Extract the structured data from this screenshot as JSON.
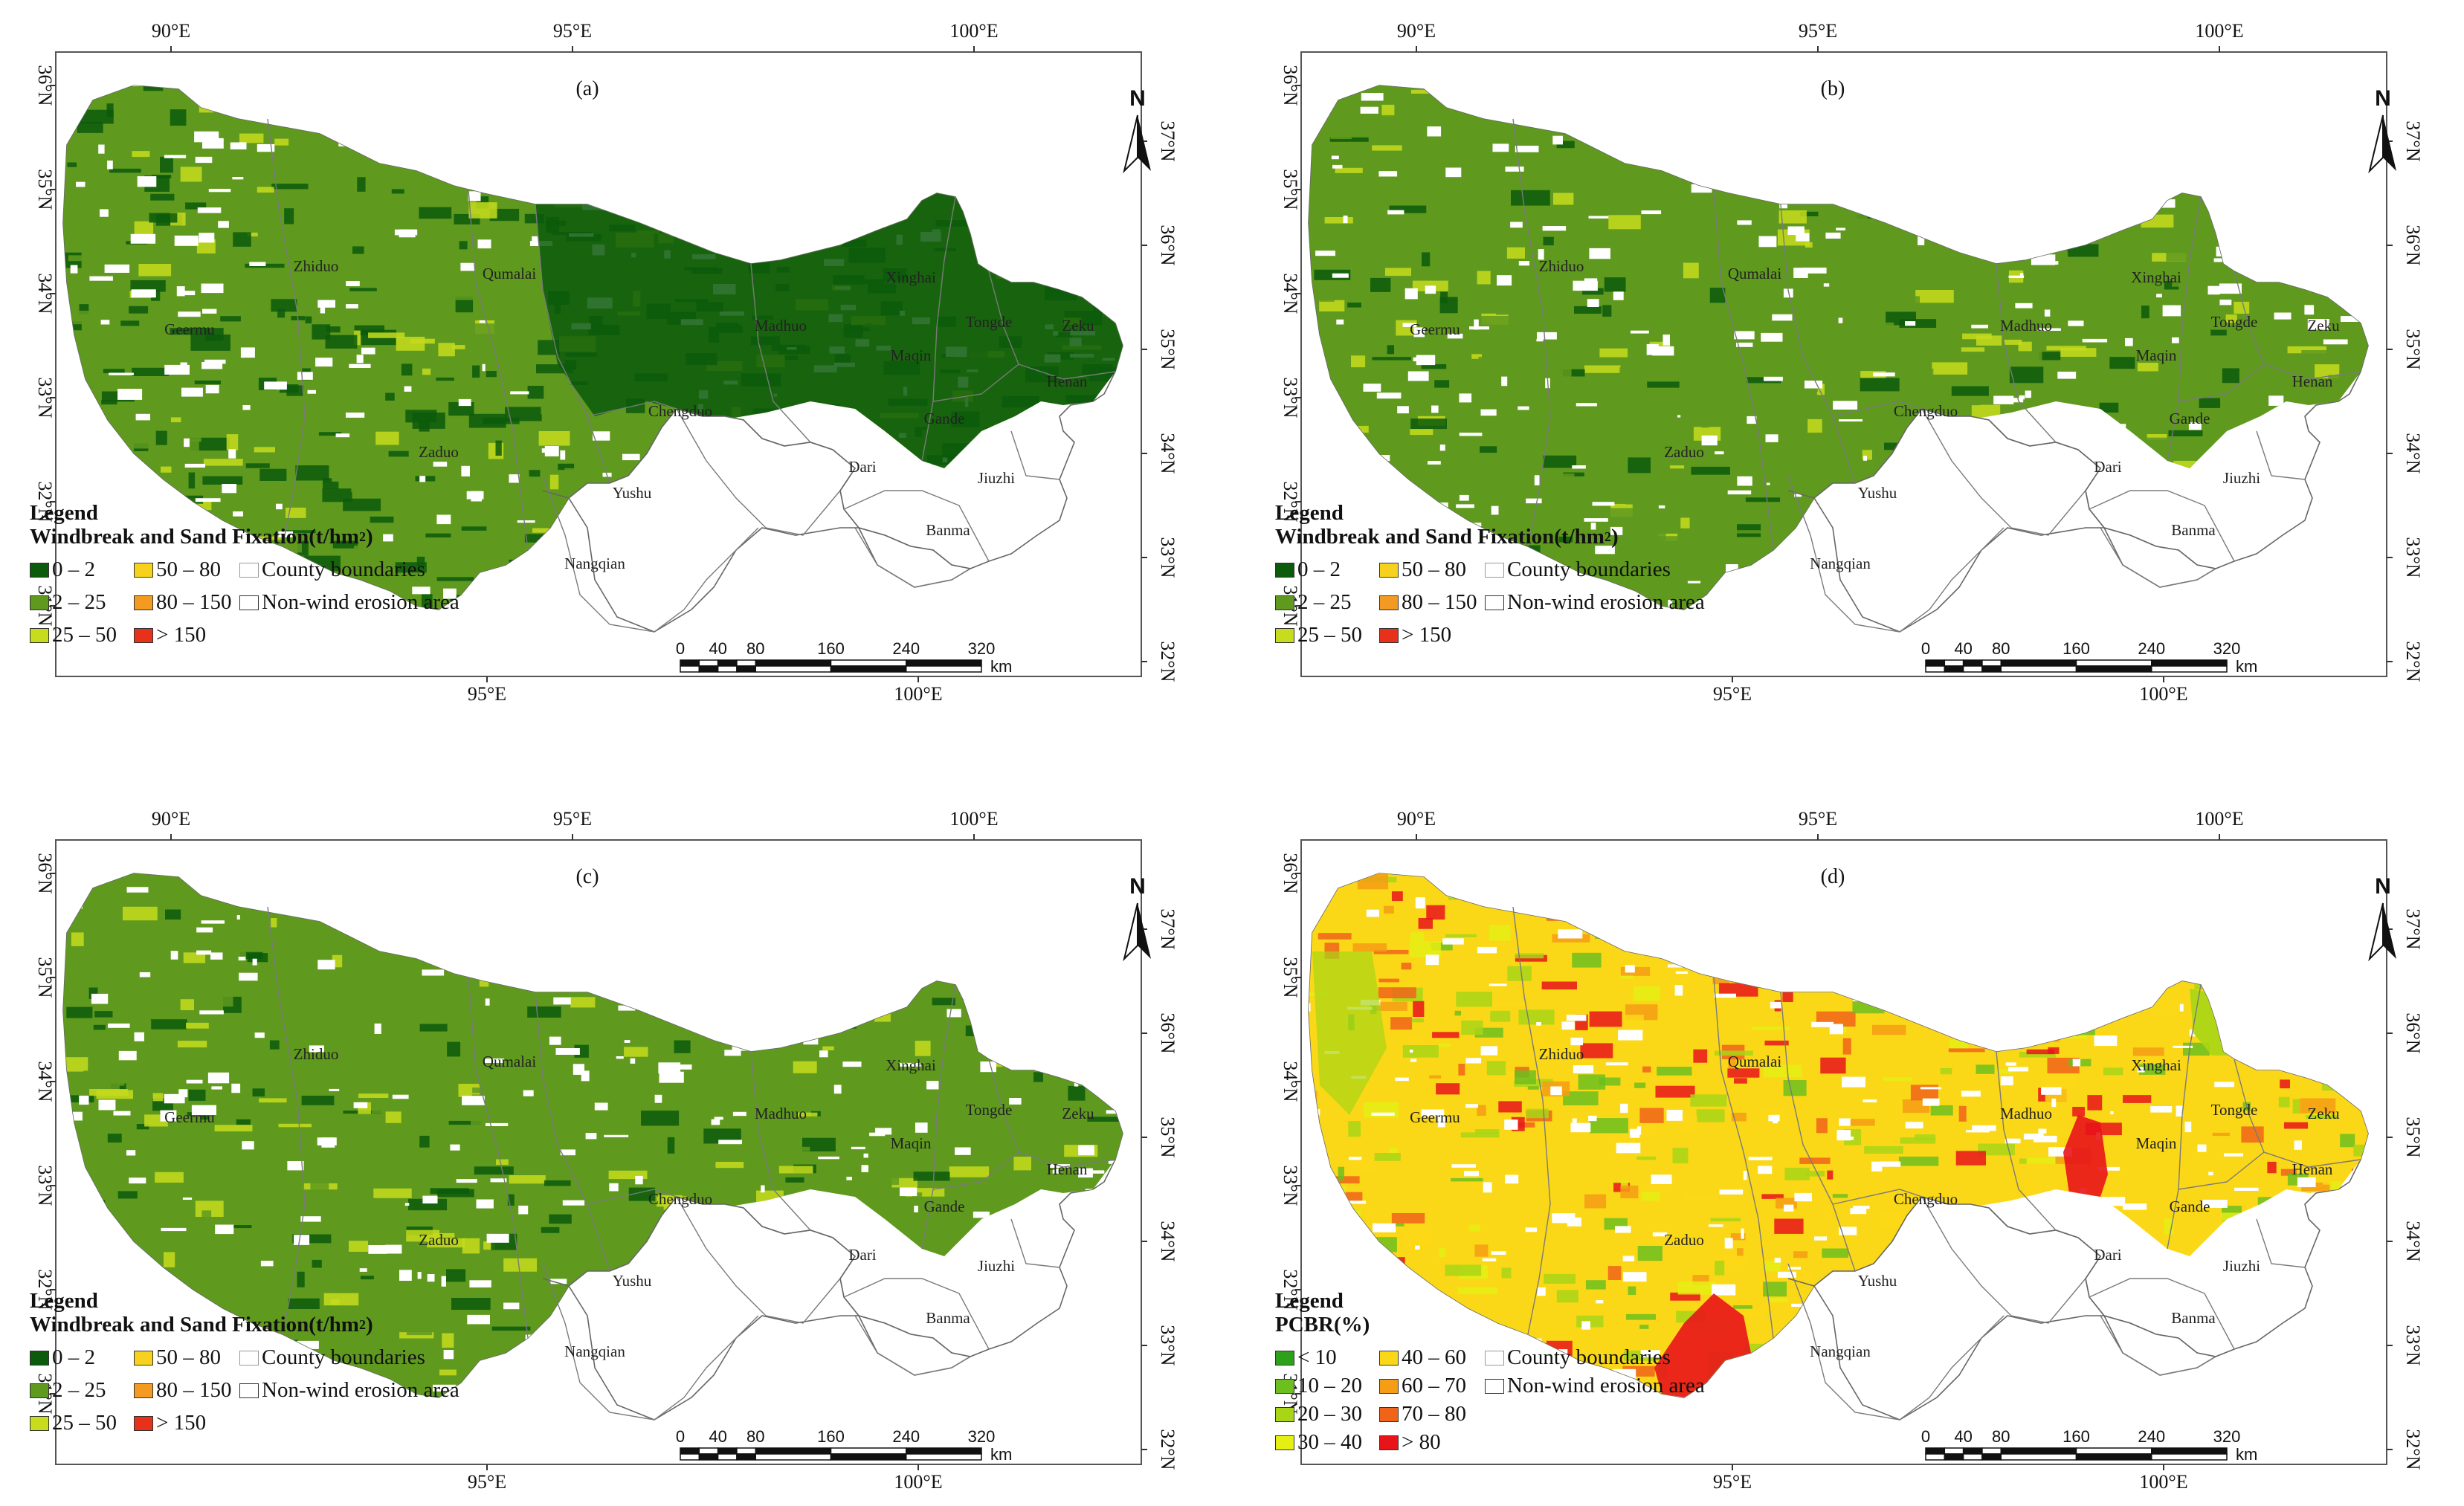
{
  "lon_top": [
    "90°E",
    "95°E",
    "100°E"
  ],
  "lon_bottom": [
    "95°E",
    "100°E"
  ],
  "lat_left": [
    "36°N",
    "35°N",
    "34°N",
    "33°N",
    "32°N",
    "31°N"
  ],
  "lat_right": [
    "37°N",
    "36°N",
    "35°N",
    "34°N",
    "33°N",
    "32°N"
  ],
  "north_label": "N",
  "counties": [
    "Zhiduo",
    "Qumalai",
    "Xinghai",
    "Tongde",
    "Zeku",
    "Geermu",
    "Madhuo",
    "Maqin",
    "Henan",
    "Chengduo",
    "Gande",
    "Zaduo",
    "Dari",
    "Jiuzhi",
    "Yushu",
    "Banma",
    "Nangqian"
  ],
  "scalebar": {
    "ticks": [
      "0",
      "40",
      "80",
      "160",
      "240",
      "320"
    ],
    "unit": "km"
  },
  "colors": {
    "dark_green": "#0c5a0c",
    "green": "#5f9a1e",
    "yellow_green": "#c6dc1c",
    "yellow": "#f6d21e",
    "orange": "#f39a22",
    "red": "#e8311b",
    "pcbr1": "#2ea11a",
    "pcbr2": "#6cbf1e",
    "pcbr3": "#a8d616",
    "pcbr4": "#e4ef14",
    "pcbr5": "#fbd817",
    "pcbr6": "#f59d14",
    "pcbr7": "#f0641a",
    "pcbr8": "#e8141a"
  },
  "legend_common": {
    "title": "Legend",
    "county_boundaries": "County boundaries",
    "non_wind": "Non-wind erosion area"
  },
  "panels": [
    {
      "label": "(a)",
      "subtitle": "Windbreak and Sand Fixation(t/hm2)",
      "classes": [
        "0 – 2",
        "2 – 25",
        "25 – 50",
        "50 – 80",
        "80 – 150",
        "> 150"
      ],
      "dominant": "dark_green"
    },
    {
      "label": "(b)",
      "subtitle": "Windbreak and Sand Fixation(t/hm2)",
      "classes": [
        "0 – 2",
        "2 – 25",
        "25 – 50",
        "50 – 80",
        "80 – 150",
        "> 150"
      ],
      "dominant": "green"
    },
    {
      "label": "(c)",
      "subtitle": "Windbreak and Sand Fixation(t/hm2)",
      "classes": [
        "0 – 2",
        "2 – 25",
        "25 – 50",
        "50 – 80",
        "80 – 150",
        "> 150"
      ],
      "dominant": "green"
    },
    {
      "label": "(d)",
      "subtitle": "PCBR(%)",
      "classes": [
        "< 10",
        "10 – 20",
        "20 – 30",
        "30 – 40",
        "40 – 60",
        "60 – 70",
        "70 – 80",
        "> 80"
      ],
      "dominant": "pcbr5"
    }
  ]
}
